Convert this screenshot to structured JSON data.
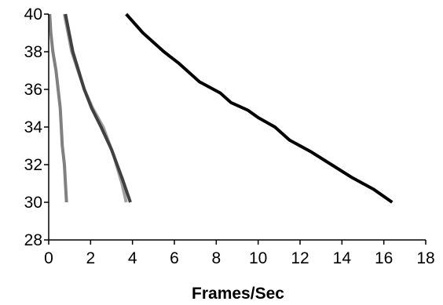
{
  "chart_data": {
    "type": "line",
    "xlabel": "Frames/Sec",
    "ylabel": "",
    "xlim": [
      0,
      18
    ],
    "ylim": [
      28,
      40
    ],
    "x_ticks": [
      0,
      2,
      4,
      6,
      8,
      10,
      12,
      14,
      16,
      18
    ],
    "y_ticks": [
      28,
      30,
      32,
      34,
      36,
      38,
      40
    ],
    "x_tick_labels": [
      "0",
      "2",
      "4",
      "6",
      "8",
      "10",
      "12",
      "14",
      "16",
      "18"
    ],
    "y_tick_labels": [
      "28",
      "30",
      "32",
      "34",
      "36",
      "38",
      "40"
    ],
    "grid": false,
    "legend": "none",
    "series": [
      {
        "color": "#808080",
        "width": 4,
        "points": [
          [
            0.05,
            40
          ],
          [
            0.1,
            39
          ],
          [
            0.2,
            38
          ],
          [
            0.35,
            37
          ],
          [
            0.45,
            36
          ],
          [
            0.55,
            35
          ],
          [
            0.6,
            34
          ],
          [
            0.65,
            33
          ],
          [
            0.75,
            32
          ],
          [
            0.8,
            31
          ],
          [
            0.85,
            30
          ]
        ]
      },
      {
        "color": "#a0a0a0",
        "width": 4,
        "points": [
          [
            0.75,
            40
          ],
          [
            1.1,
            38
          ],
          [
            1.7,
            36
          ],
          [
            2.1,
            35
          ],
          [
            2.6,
            34
          ],
          [
            3.1,
            32.5
          ],
          [
            3.5,
            31
          ],
          [
            3.7,
            30
          ]
        ]
      },
      {
        "color": "#404040",
        "width": 4,
        "points": [
          [
            0.8,
            40
          ],
          [
            1.15,
            38
          ],
          [
            1.7,
            36
          ],
          [
            2.05,
            35
          ],
          [
            2.5,
            34
          ],
          [
            3.0,
            32.8
          ],
          [
            3.5,
            31.3
          ],
          [
            3.9,
            30
          ]
        ]
      },
      {
        "color": "#000000",
        "width": 4,
        "points": [
          [
            3.7,
            40
          ],
          [
            4.5,
            39
          ],
          [
            5.5,
            38
          ],
          [
            6.2,
            37.4
          ],
          [
            7.2,
            36.4
          ],
          [
            8.2,
            35.8
          ],
          [
            8.7,
            35.3
          ],
          [
            9.5,
            34.9
          ],
          [
            10.0,
            34.5
          ],
          [
            10.8,
            34
          ],
          [
            11.5,
            33.3
          ],
          [
            12.5,
            32.7
          ],
          [
            13.5,
            32
          ],
          [
            14.5,
            31.3
          ],
          [
            15.5,
            30.7
          ],
          [
            16.4,
            30
          ]
        ]
      }
    ]
  }
}
